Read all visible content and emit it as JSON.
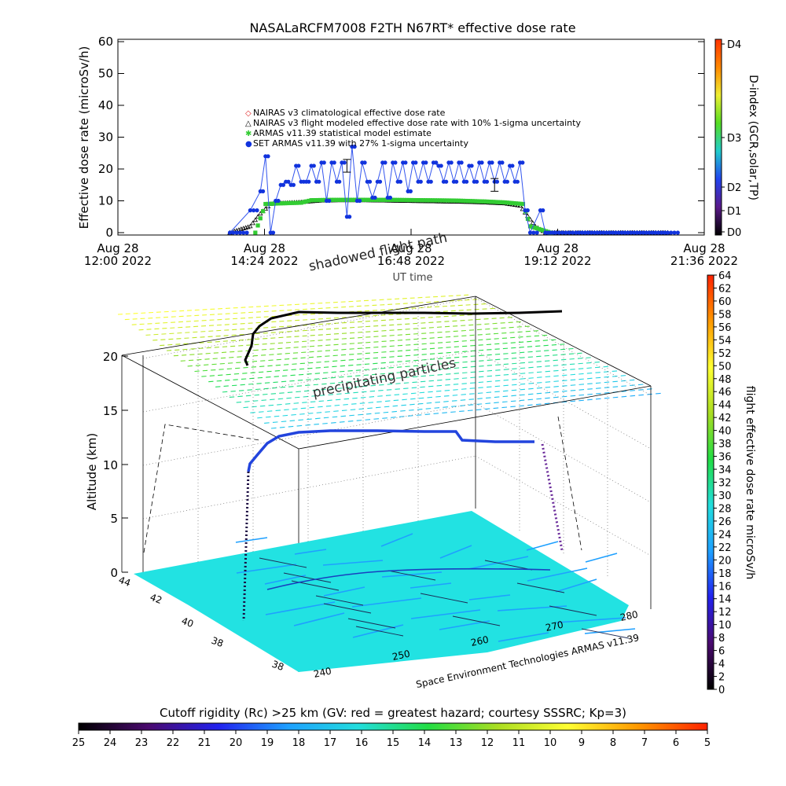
{
  "chart_data": [
    {
      "type": "scatter",
      "title": "NASALaRCFM7008  F2TH N67RT* effective dose rate",
      "ylabel": "Effective dose rate (microSv/h)",
      "xlabel": "UT time",
      "xlim": [
        "2022-08-28 12:00",
        "2022-08-28 21:36"
      ],
      "ylim": [
        0,
        60
      ],
      "yticks": [
        0,
        10,
        20,
        30,
        40,
        50,
        60
      ],
      "xticks": [
        {
          "line1": "Aug 28",
          "line2": "12:00 2022"
        },
        {
          "line1": "Aug 28",
          "line2": "14:24 2022"
        },
        {
          "line1": "Aug 28",
          "line2": "16:48 2022"
        },
        {
          "line1": "Aug 28",
          "line2": "19:12 2022"
        },
        {
          "line1": "Aug 28",
          "line2": "21:36 2022"
        }
      ],
      "legend": [
        {
          "symbol": "◇",
          "color": "#e02020",
          "label": "NAIRAS v3 climatological effective dose rate"
        },
        {
          "symbol": "△",
          "color": "#000000",
          "label": "NAIRAS v3 flight modeled effective dose rate with 10% 1-sigma uncertainty"
        },
        {
          "symbol": "✱",
          "color": "#33cc33",
          "label": "ARMAS v11.39 statistical model estimate"
        },
        {
          "symbol": "●",
          "color": "#1133dd",
          "label": "SET ARMAS v11.39 with 27% 1-sigma uncertainty"
        }
      ],
      "series": [
        {
          "name": "NAIRAS v3 flight modeled effective dose rate with 10% 1-sigma uncertainty",
          "x": [
            "13:50",
            "14:10",
            "14:20",
            "14:30",
            "14:40",
            "15:00",
            "15:20",
            "15:40",
            "16:00",
            "16:20",
            "16:40",
            "17:00",
            "17:20",
            "17:40",
            "18:00",
            "18:20",
            "18:35",
            "18:50",
            "19:00",
            "19:20",
            "20:00",
            "21:00"
          ],
          "values": [
            0,
            2,
            6,
            9,
            9.3,
            9.6,
            10.1,
            10.2,
            10.2,
            10.1,
            10.0,
            9.9,
            9.8,
            9.7,
            9.5,
            9.2,
            8.5,
            2,
            0,
            0,
            0,
            0
          ]
        },
        {
          "name": "ARMAS v11.39 statistical model estimate",
          "x": [
            "14:15",
            "14:25",
            "14:40",
            "15:00",
            "15:10",
            "15:30",
            "16:00",
            "16:30",
            "17:00",
            "17:30",
            "18:00",
            "18:20",
            "18:38",
            "18:45",
            "19:05"
          ],
          "values": [
            0,
            9,
            9.2,
            9.4,
            10.2,
            10.3,
            10.3,
            10.3,
            10.2,
            10.1,
            9.8,
            9.5,
            9,
            2,
            0
          ]
        },
        {
          "name": "SET ARMAS v11.39 with 27% 1-sigma uncertainty",
          "x": [
            "13:50",
            "14:10",
            "14:20",
            "14:25",
            "14:30",
            "14:35",
            "14:40",
            "14:45",
            "14:50",
            "14:55",
            "15:00",
            "15:05",
            "15:10",
            "15:15",
            "15:20",
            "15:25",
            "15:30",
            "15:35",
            "15:40",
            "15:45",
            "15:50",
            "15:55",
            "16:00",
            "16:05",
            "16:10",
            "16:15",
            "16:20",
            "16:25",
            "16:30",
            "16:35",
            "16:40",
            "16:45",
            "16:50",
            "16:55",
            "17:00",
            "17:05",
            "17:10",
            "17:15",
            "17:20",
            "17:25",
            "17:30",
            "17:35",
            "17:40",
            "17:45",
            "17:50",
            "17:55",
            "18:00",
            "18:05",
            "18:10",
            "18:15",
            "18:20",
            "18:25",
            "18:30",
            "18:35",
            "18:40",
            "18:45",
            "18:55",
            "19:00",
            "19:05",
            "19:10",
            "19:30",
            "20:00",
            "20:30",
            "21:00",
            "21:10"
          ],
          "values": [
            0,
            7,
            13,
            24,
            0,
            10,
            15,
            16,
            15,
            21,
            16,
            16,
            21,
            16,
            22,
            10,
            22,
            16,
            22,
            5,
            27,
            10,
            22,
            16,
            11,
            16,
            22,
            11,
            22,
            16,
            22,
            13,
            22,
            16,
            22,
            16,
            22,
            21,
            16,
            22,
            16,
            22,
            16,
            21,
            16,
            22,
            16,
            22,
            16,
            22,
            16,
            21,
            16,
            22,
            7,
            0,
            7,
            0,
            0,
            0,
            0,
            0,
            0,
            0,
            0
          ]
        }
      ],
      "error_bars": [
        {
          "x": "15:45",
          "y": 21,
          "err": 2
        },
        {
          "x": "18:10",
          "y": 15,
          "err": 2
        }
      ],
      "right_axis": {
        "label": "D-index (GCR,solar,TP)",
        "ticks": [
          "D0",
          "D1",
          "D2",
          "D3",
          "D4"
        ]
      }
    },
    {
      "type": "scatter",
      "title": "shadowed flight path",
      "zlabel": "Altitude (km)",
      "zticks": [
        0,
        5,
        10,
        15,
        20
      ],
      "latitude_ticks": [
        38,
        38,
        40,
        42,
        44
      ],
      "longitude_ticks": [
        240,
        250,
        260,
        270,
        280
      ],
      "annotations": [
        "precipitating particles"
      ],
      "credit": "Space Environment Technologies ARMAS v11.39",
      "colorbar": {
        "label": "flight effective dose rate microSv/h",
        "min": 0,
        "max": 64,
        "ticks": [
          0,
          2,
          4,
          6,
          8,
          10,
          12,
          14,
          16,
          18,
          20,
          22,
          24,
          26,
          28,
          30,
          32,
          34,
          36,
          38,
          40,
          42,
          44,
          46,
          48,
          50,
          52,
          54,
          56,
          58,
          60,
          62,
          64
        ]
      }
    },
    {
      "type": "heatmap",
      "title": "Cutoff rigidity (Rc) >25 km (GV: red = greatest hazard; courtesy SSSRC; Kp=3)",
      "ticks": [
        25,
        24,
        23,
        22,
        21,
        20,
        19,
        18,
        17,
        16,
        15,
        14,
        13,
        12,
        11,
        10,
        9,
        8,
        7,
        6,
        5
      ]
    }
  ],
  "colors": {
    "ramp": [
      "#000000",
      "#4a0a6e",
      "#2222ee",
      "#1ea0ff",
      "#22dddd",
      "#22dd44",
      "#aadd22",
      "#ffff33",
      "#ff9900",
      "#ff2200"
    ],
    "map_ocean": "#22e2e2",
    "map_land": "#1ea0ff"
  }
}
